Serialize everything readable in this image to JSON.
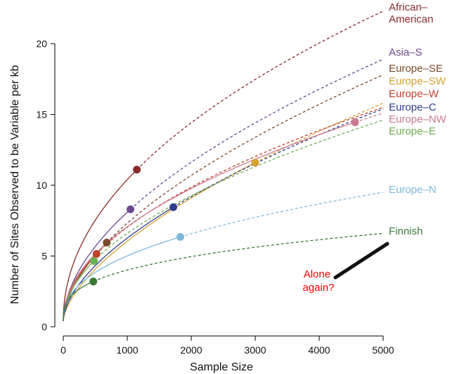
{
  "chart_data": {
    "type": "line",
    "xlabel": "Sample Size",
    "ylabel": "Number of Sites Observed to be Variable per kb",
    "xlim": [
      0,
      5000
    ],
    "ylim": [
      0,
      20
    ],
    "xticks": [
      0,
      1000,
      2000,
      3000,
      4000,
      5000
    ],
    "yticks": [
      0,
      5,
      10,
      15,
      20
    ],
    "grid": false,
    "legend": "labels at line ends, right",
    "series": [
      {
        "name": "African–\nAmerican",
        "color": "#8B2A2A",
        "observed_n": 1150,
        "observed_value": 11.1,
        "extrapolated_value_at_5000": 22.3
      },
      {
        "name": "Asia–S",
        "color": "#6B4A8E",
        "observed_n": 1050,
        "observed_value": 8.3,
        "extrapolated_value_at_5000": 18.9
      },
      {
        "name": "Europe–SE",
        "color": "#7A4A2A",
        "observed_n": 680,
        "observed_value": 5.95,
        "extrapolated_value_at_5000": 17.8
      },
      {
        "name": "Europe–SW",
        "color": "#D8A030",
        "observed_n": 3000,
        "observed_value": 11.6,
        "extrapolated_value_at_5000": 15.8
      },
      {
        "name": "Europe–W",
        "color": "#C0402A",
        "observed_n": 520,
        "observed_value": 5.15,
        "extrapolated_value_at_5000": 15.5
      },
      {
        "name": "Europe–C",
        "color": "#2E3E8C",
        "observed_n": 1720,
        "observed_value": 8.45,
        "extrapolated_value_at_5000": 15.4
      },
      {
        "name": "Europe–NW",
        "color": "#C97A90",
        "observed_n": 4560,
        "observed_value": 14.45,
        "extrapolated_value_at_5000": 15.1
      },
      {
        "name": "Europe–E",
        "color": "#6CAF50",
        "observed_n": 480,
        "observed_value": 4.65,
        "extrapolated_value_at_5000": 14.6
      },
      {
        "name": "Europe–N",
        "color": "#7FB8DA",
        "observed_n": 1830,
        "observed_value": 6.35,
        "extrapolated_value_at_5000": 9.5
      },
      {
        "name": "Finnish",
        "color": "#3A7A38",
        "observed_n": 470,
        "observed_value": 3.2,
        "extrapolated_value_at_5000": 6.6
      }
    ],
    "annotation": {
      "text": "Alone\nagain?",
      "color": "#FF0000"
    }
  }
}
